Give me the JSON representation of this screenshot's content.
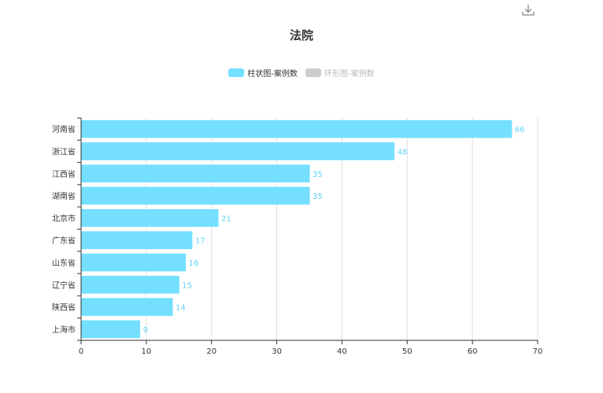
{
  "toolbar": {
    "download_icon": "download-icon"
  },
  "colors": {
    "bar": "#74dfff",
    "label": "#5ed3f3",
    "legend_inactive": "#cccccc",
    "axis": "#333333",
    "grid": "#e0e0e0"
  },
  "chart_data": {
    "type": "bar",
    "orientation": "horizontal",
    "title": "法院",
    "legend": [
      {
        "name": "柱状图-案例数",
        "active": true
      },
      {
        "name": "环形图-案例数",
        "active": false
      }
    ],
    "legend_position": "top-center",
    "categories": [
      "河南省",
      "浙江省",
      "江西省",
      "湖南省",
      "北京市",
      "广东省",
      "山东省",
      "辽宁省",
      "陕西省",
      "上海市"
    ],
    "series": [
      {
        "name": "柱状图-案例数",
        "values": [
          66,
          48,
          35,
          35,
          21,
          17,
          16,
          15,
          14,
          9
        ]
      }
    ],
    "xlim": [
      0,
      70
    ],
    "xticks": [
      0,
      10,
      20,
      30,
      40,
      50,
      60,
      70
    ],
    "grid": "vertical"
  }
}
